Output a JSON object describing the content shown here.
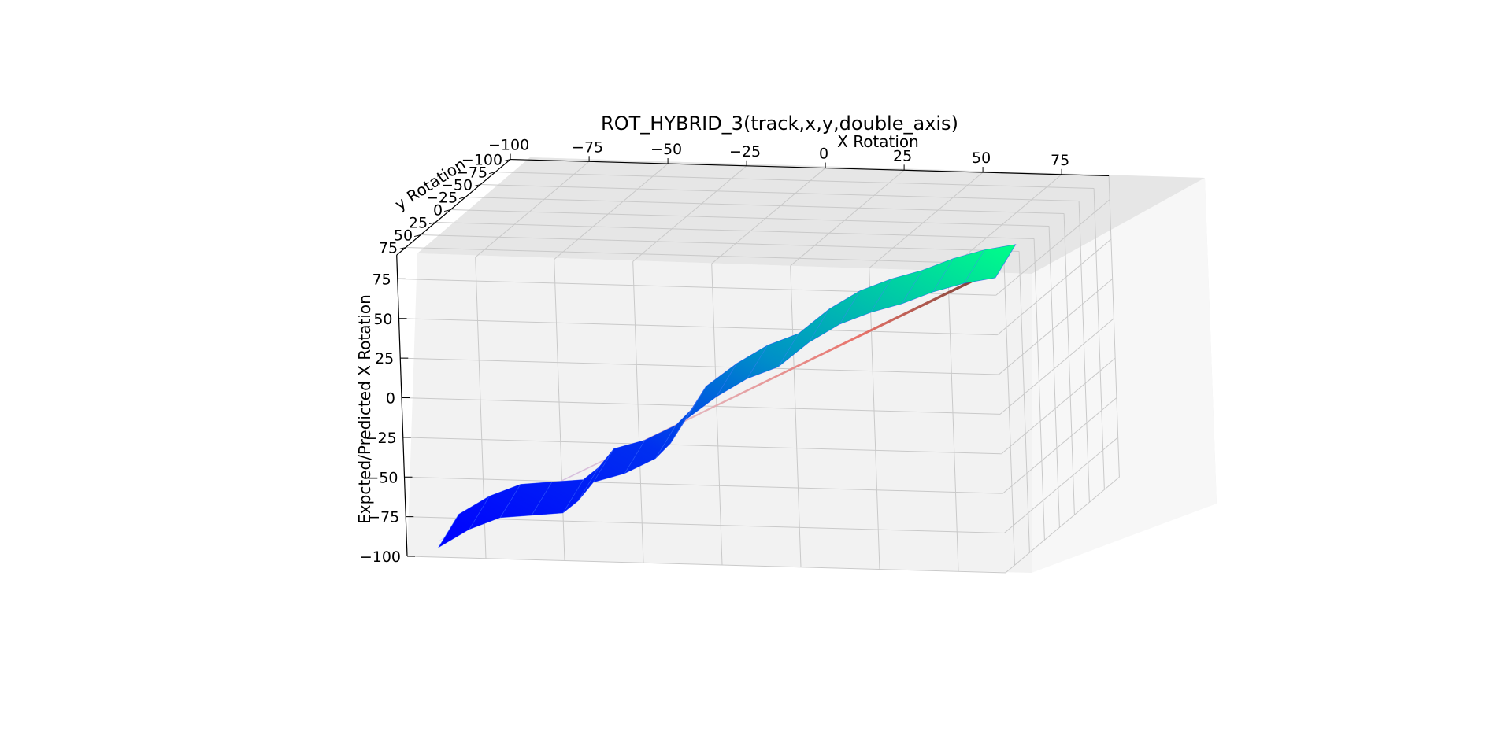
{
  "chart_data": {
    "type": "surface3d",
    "title": "ROT_HYBRID_3(track,x,y,double_axis)",
    "xlabel": "X Rotation",
    "ylabel": "y Rotation",
    "zlabel": "Expcted/Predicted X Rotation",
    "x_ticks": [
      "−100",
      "−75",
      "−50",
      "−25",
      "0",
      "25",
      "50",
      "75"
    ],
    "y_ticks": [
      "−100",
      "−75",
      "−50",
      "−25",
      "0",
      "25",
      "50",
      "75"
    ],
    "z_ticks": [
      "75",
      "50",
      "25",
      "0",
      "−25",
      "−50",
      "−75",
      "−100"
    ],
    "xlim": [
      -100,
      90
    ],
    "ylim": [
      -100,
      90
    ],
    "zlim": [
      -100,
      90
    ],
    "grid": true,
    "series": [
      {
        "kind": "predicted_surface",
        "colormap": "winter",
        "colors": [
          "#0000ff",
          "#00ff80"
        ],
        "profile_x": [
          -90,
          -80,
          -70,
          -60,
          -50,
          -45,
          -40,
          -30,
          -20,
          -15,
          -10,
          0,
          10,
          20,
          30,
          40,
          50,
          60,
          70,
          80,
          90
        ],
        "profile_z": [
          -90,
          -78,
          -70,
          -68,
          -66,
          -58,
          -46,
          -40,
          -30,
          -20,
          -5,
          10,
          22,
          30,
          46,
          58,
          66,
          72,
          80,
          86,
          90
        ]
      },
      {
        "kind": "expected_plane",
        "colormap": "coolwarm",
        "colors": [
          "#c8c8ff",
          "#e8736a",
          "#6b3a2e"
        ],
        "x": [
          -90,
          90
        ],
        "z": [
          -90,
          90
        ]
      }
    ]
  }
}
